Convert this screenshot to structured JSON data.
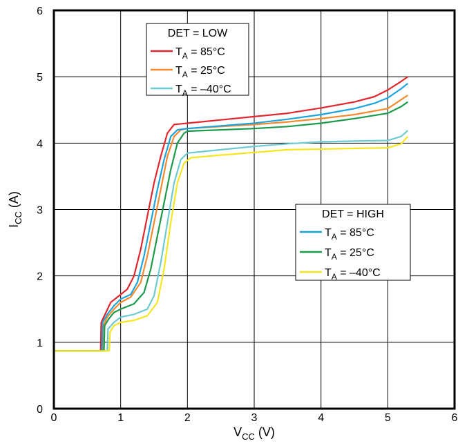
{
  "chart_data": {
    "type": "line",
    "xlabel": {
      "main": "V",
      "sub": "CC",
      "unit": " (V)"
    },
    "ylabel": {
      "main": "I",
      "sub": "CC",
      "unit": " (A)"
    },
    "xlim": [
      0,
      6
    ],
    "ylim": [
      0,
      6
    ],
    "xticks": [
      0,
      1,
      2,
      3,
      4,
      5,
      6
    ],
    "yticks": [
      0,
      1,
      2,
      3,
      4,
      5,
      6
    ],
    "grid": true,
    "legends": [
      {
        "title": "DET = LOW",
        "placement": "top-left",
        "entries": [
          {
            "prefix": "T",
            "sub": "A",
            "text": " = 85°C",
            "series": 0
          },
          {
            "prefix": "T",
            "sub": "A",
            "text": " = 25°C",
            "series": 1
          },
          {
            "prefix": "T",
            "sub": "A",
            "text": " = –40°C",
            "series": 2
          }
        ]
      },
      {
        "title": "DET = HIGH",
        "placement": "center-right",
        "entries": [
          {
            "prefix": "T",
            "sub": "A",
            "text": " = 85°C",
            "series": 3
          },
          {
            "prefix": "T",
            "sub": "A",
            "text": " = 25°C",
            "series": 4
          },
          {
            "prefix": "T",
            "sub": "A",
            "text": " = –40°C",
            "series": 5
          }
        ]
      }
    ],
    "series": [
      {
        "color": "#e3262d",
        "points": [
          [
            0,
            0.87
          ],
          [
            0.7,
            0.87
          ],
          [
            0.71,
            1.3
          ],
          [
            0.78,
            1.45
          ],
          [
            0.85,
            1.6
          ],
          [
            1,
            1.72
          ],
          [
            1.1,
            1.8
          ],
          [
            1.2,
            2.0
          ],
          [
            1.3,
            2.4
          ],
          [
            1.4,
            2.9
          ],
          [
            1.5,
            3.4
          ],
          [
            1.6,
            3.8
          ],
          [
            1.7,
            4.15
          ],
          [
            1.8,
            4.28
          ],
          [
            2,
            4.3
          ],
          [
            2.5,
            4.35
          ],
          [
            3,
            4.4
          ],
          [
            3.5,
            4.45
          ],
          [
            4,
            4.53
          ],
          [
            4.5,
            4.62
          ],
          [
            4.8,
            4.7
          ],
          [
            5,
            4.8
          ],
          [
            5.2,
            4.93
          ],
          [
            5.3,
            5.0
          ]
        ]
      },
      {
        "color": "#f48a2b",
        "points": [
          [
            0,
            0.87
          ],
          [
            0.73,
            0.87
          ],
          [
            0.74,
            1.25
          ],
          [
            0.8,
            1.38
          ],
          [
            0.9,
            1.5
          ],
          [
            1,
            1.6
          ],
          [
            1.15,
            1.68
          ],
          [
            1.3,
            1.9
          ],
          [
            1.4,
            2.3
          ],
          [
            1.5,
            2.8
          ],
          [
            1.6,
            3.3
          ],
          [
            1.7,
            3.8
          ],
          [
            1.8,
            4.1
          ],
          [
            1.9,
            4.2
          ],
          [
            2,
            4.22
          ],
          [
            2.5,
            4.25
          ],
          [
            3,
            4.28
          ],
          [
            3.5,
            4.32
          ],
          [
            4,
            4.37
          ],
          [
            4.5,
            4.43
          ],
          [
            5,
            4.52
          ],
          [
            5.3,
            4.72
          ]
        ]
      },
      {
        "color": "#6ccbd0",
        "points": [
          [
            0,
            0.87
          ],
          [
            0.8,
            0.87
          ],
          [
            0.81,
            1.2
          ],
          [
            0.9,
            1.3
          ],
          [
            1,
            1.38
          ],
          [
            1.2,
            1.42
          ],
          [
            1.4,
            1.5
          ],
          [
            1.5,
            1.7
          ],
          [
            1.6,
            2.2
          ],
          [
            1.7,
            2.8
          ],
          [
            1.8,
            3.4
          ],
          [
            1.9,
            3.75
          ],
          [
            2,
            3.85
          ],
          [
            2.5,
            3.9
          ],
          [
            3,
            3.95
          ],
          [
            3.5,
            3.99
          ],
          [
            4,
            4.02
          ],
          [
            4.5,
            4.03
          ],
          [
            5,
            4.04
          ],
          [
            5.2,
            4.1
          ],
          [
            5.3,
            4.19
          ]
        ]
      },
      {
        "color": "#1aa3de",
        "points": [
          [
            0,
            0.87
          ],
          [
            0.72,
            0.87
          ],
          [
            0.73,
            1.3
          ],
          [
            0.8,
            1.42
          ],
          [
            0.9,
            1.55
          ],
          [
            1,
            1.65
          ],
          [
            1.15,
            1.72
          ],
          [
            1.25,
            1.9
          ],
          [
            1.35,
            2.3
          ],
          [
            1.45,
            2.8
          ],
          [
            1.55,
            3.3
          ],
          [
            1.65,
            3.75
          ],
          [
            1.75,
            4.1
          ],
          [
            1.85,
            4.2
          ],
          [
            2,
            4.22
          ],
          [
            2.5,
            4.26
          ],
          [
            3,
            4.3
          ],
          [
            3.5,
            4.36
          ],
          [
            4,
            4.43
          ],
          [
            4.5,
            4.52
          ],
          [
            4.8,
            4.6
          ],
          [
            5,
            4.68
          ],
          [
            5.2,
            4.82
          ],
          [
            5.3,
            4.9
          ]
        ]
      },
      {
        "color": "#1b9a4b",
        "points": [
          [
            0,
            0.87
          ],
          [
            0.75,
            0.87
          ],
          [
            0.76,
            1.25
          ],
          [
            0.82,
            1.35
          ],
          [
            0.9,
            1.45
          ],
          [
            1,
            1.5
          ],
          [
            1.2,
            1.58
          ],
          [
            1.35,
            1.75
          ],
          [
            1.45,
            2.1
          ],
          [
            1.55,
            2.6
          ],
          [
            1.65,
            3.1
          ],
          [
            1.75,
            3.6
          ],
          [
            1.85,
            4.0
          ],
          [
            1.95,
            4.15
          ],
          [
            2,
            4.18
          ],
          [
            2.5,
            4.2
          ],
          [
            3,
            4.22
          ],
          [
            3.5,
            4.25
          ],
          [
            4,
            4.3
          ],
          [
            4.5,
            4.37
          ],
          [
            5,
            4.45
          ],
          [
            5.2,
            4.55
          ],
          [
            5.3,
            4.62
          ]
        ]
      },
      {
        "color": "#f6e61f",
        "points": [
          [
            0,
            0.87
          ],
          [
            0.83,
            0.87
          ],
          [
            0.84,
            1.15
          ],
          [
            0.9,
            1.25
          ],
          [
            1,
            1.3
          ],
          [
            1.2,
            1.33
          ],
          [
            1.4,
            1.4
          ],
          [
            1.55,
            1.6
          ],
          [
            1.65,
            2.1
          ],
          [
            1.75,
            2.8
          ],
          [
            1.85,
            3.4
          ],
          [
            1.95,
            3.7
          ],
          [
            2.05,
            3.78
          ],
          [
            2.5,
            3.82
          ],
          [
            3,
            3.86
          ],
          [
            3.5,
            3.9
          ],
          [
            4,
            3.91
          ],
          [
            4.5,
            3.92
          ],
          [
            5,
            3.93
          ],
          [
            5.2,
            3.99
          ],
          [
            5.3,
            4.1
          ]
        ]
      }
    ]
  }
}
